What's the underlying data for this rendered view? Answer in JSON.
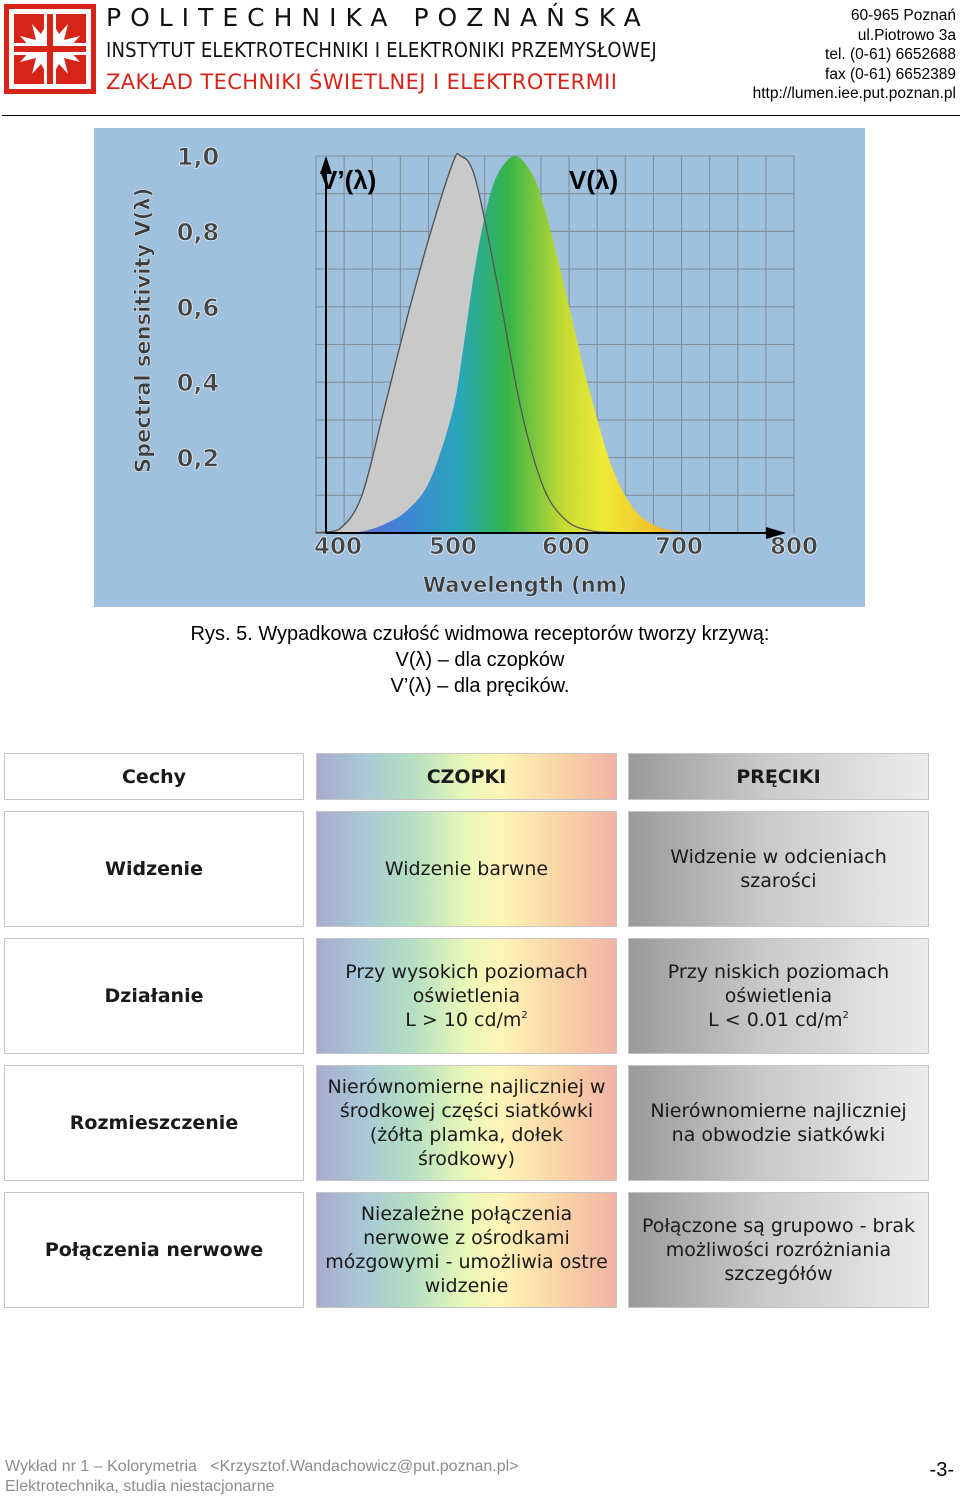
{
  "header": {
    "university": "POLITECHNIKA POZNAŃSKA",
    "institute": "INSTYTUT ELEKTROTECHNIKI I ELEKTRONIKI PRZEMYSŁOWEJ",
    "department": "ZAKŁAD TECHNIKI ŚWIETLNEJ I ELEKTROTERMII",
    "contact": [
      "60-965 Poznań",
      "ul.Piotrowo 3a",
      "tel. (0-61) 6652688",
      "fax (0-61) 6652389",
      "http://lumen.iee.put.poznan.pl"
    ]
  },
  "colors": {
    "logo_red": "#d62518",
    "figure_bg": "#9fc1de"
  },
  "figure": {
    "label_rods": "V’(λ)",
    "label_cones": "V(λ)"
  },
  "chart_data": {
    "type": "area",
    "ylabel": "Spectral sensitivity V(λ)",
    "xlabel": "Wavelength (nm)",
    "xticks": [
      "400",
      "500",
      "600",
      "700",
      "800"
    ],
    "yticks": [
      "1,0",
      "0,8",
      "0,6",
      "0,4",
      "0,2"
    ],
    "xlim": [
      380,
      800
    ],
    "ylim": [
      0,
      1.0
    ],
    "grid": true,
    "series": [
      {
        "name": "V’(λ)",
        "peak_x": 507,
        "x": [
          380,
          400,
          420,
          440,
          460,
          480,
          500,
          507,
          520,
          540,
          560,
          580,
          600,
          620,
          640,
          660,
          680,
          700
        ],
        "y": [
          0.0006,
          0.009,
          0.097,
          0.33,
          0.57,
          0.79,
          0.98,
          1.0,
          0.94,
          0.65,
          0.33,
          0.12,
          0.033,
          0.007,
          0.0015,
          0.0003,
          0.0001,
          0.0
        ]
      },
      {
        "name": "V(λ)",
        "peak_x": 555,
        "x": [
          380,
          400,
          420,
          440,
          460,
          480,
          500,
          510,
          520,
          530,
          540,
          555,
          570,
          580,
          590,
          600,
          610,
          620,
          640,
          660,
          680,
          700,
          720,
          740,
          760,
          780
        ],
        "y": [
          4e-05,
          0.0004,
          0.004,
          0.023,
          0.06,
          0.139,
          0.323,
          0.503,
          0.71,
          0.862,
          0.954,
          1.0,
          0.952,
          0.87,
          0.757,
          0.631,
          0.503,
          0.381,
          0.175,
          0.061,
          0.017,
          0.0041,
          0.001,
          0.00025,
          6e-05,
          1.5e-05
        ]
      }
    ]
  },
  "caption": {
    "line1": "Rys. 5. Wypadkowa czułość widmowa receptorów tworzy krzywą:",
    "line2": "V(λ) – dla czopków",
    "line3": "V’(λ) – dla pręcików."
  },
  "table": {
    "headers": [
      "Cechy",
      "CZOPKI",
      "PRĘCIKI"
    ],
    "rows": [
      {
        "feature": "Widzenie",
        "cones": "Widzenie barwne",
        "rods": "Widzenie w odcieniach szarości"
      },
      {
        "feature": "Działanie",
        "cones": "Przy wysokich poziomach oświetlenia",
        "cones_value": "L > 10 cd/m",
        "rods": "Przy niskich poziomach oświetlenia",
        "rods_value": "L < 0.01 cd/m",
        "unit_sup": "2"
      },
      {
        "feature": "Rozmieszczenie",
        "cones": "Nierównomierne najliczniej w środkowej części siatkówki (żółta plamka, dołek środkowy)",
        "rods": "Nierównomierne najliczniej na obwodzie siatkówki"
      },
      {
        "feature": "Połączenia nerwowe",
        "cones": "Niezależne połączenia nerwowe z ośrodkami mózgowymi - umożliwia ostre widzenie",
        "rods": "Połączone są grupowo - brak możliwości rozróżniania szczegółów"
      }
    ]
  },
  "footer": {
    "line1": "Wykład nr 1 – Kolorymetria   <Krzysztof.Wandachowicz@put.poznan.pl>",
    "line2": "Elektrotechnika, studia niestacjonarne",
    "page": "-3-"
  }
}
